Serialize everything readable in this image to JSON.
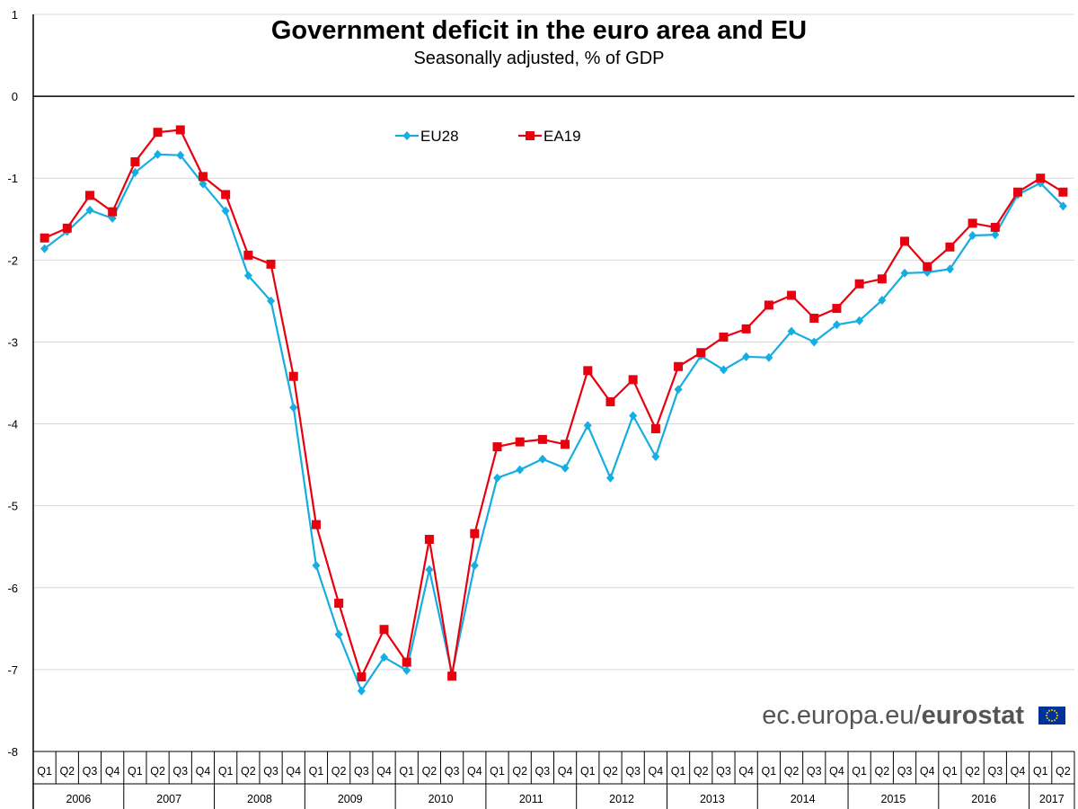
{
  "chart_data": {
    "type": "line",
    "title": "Government deficit in the euro area and EU",
    "subtitle": "Seasonally adjusted, % of GDP",
    "xlabel": "",
    "ylabel": "",
    "ylim": [
      -8,
      1
    ],
    "yticks": [
      1,
      0,
      -1,
      -2,
      -3,
      -4,
      -5,
      -6,
      -7,
      -8
    ],
    "grid": true,
    "legend_position": "top-left",
    "quarters": [
      "Q1",
      "Q2",
      "Q3",
      "Q4",
      "Q1",
      "Q2",
      "Q3",
      "Q4",
      "Q1",
      "Q2",
      "Q3",
      "Q4",
      "Q1",
      "Q2",
      "Q3",
      "Q4",
      "Q1",
      "Q2",
      "Q3",
      "Q4",
      "Q1",
      "Q2",
      "Q3",
      "Q4",
      "Q1",
      "Q2",
      "Q3",
      "Q4",
      "Q1",
      "Q2",
      "Q3",
      "Q4",
      "Q1",
      "Q2",
      "Q3",
      "Q4",
      "Q1",
      "Q2",
      "Q3",
      "Q4",
      "Q1",
      "Q2",
      "Q3",
      "Q4",
      "Q1",
      "Q2"
    ],
    "years": [
      {
        "label": "2006",
        "quarters": 4
      },
      {
        "label": "2007",
        "quarters": 4
      },
      {
        "label": "2008",
        "quarters": 4
      },
      {
        "label": "2009",
        "quarters": 4
      },
      {
        "label": "2010",
        "quarters": 4
      },
      {
        "label": "2011",
        "quarters": 4
      },
      {
        "label": "2012",
        "quarters": 4
      },
      {
        "label": "2013",
        "quarters": 4
      },
      {
        "label": "2014",
        "quarters": 4
      },
      {
        "label": "2015",
        "quarters": 4
      },
      {
        "label": "2016",
        "quarters": 4
      },
      {
        "label": "2017",
        "quarters": 2
      }
    ],
    "series": [
      {
        "name": "EU28",
        "color": "#16ade0",
        "marker": "diamond",
        "values": [
          -1.86,
          -1.65,
          -1.39,
          -1.49,
          -0.93,
          -0.71,
          -0.72,
          -1.07,
          -1.4,
          -2.19,
          -2.5,
          -3.8,
          -5.73,
          -6.57,
          -7.26,
          -6.85,
          -7.01,
          -5.78,
          -7.05,
          -5.73,
          -4.66,
          -4.56,
          -4.43,
          -4.54,
          -4.02,
          -4.66,
          -3.9,
          -4.4,
          -3.58,
          -3.17,
          -3.34,
          -3.18,
          -3.19,
          -2.87,
          -3.0,
          -2.79,
          -2.74,
          -2.49,
          -2.16,
          -2.15,
          -2.11,
          -1.7,
          -1.69,
          -1.2,
          -1.06,
          -1.34
        ]
      },
      {
        "name": "EA19",
        "color": "#e8000e",
        "marker": "square",
        "values": [
          -1.73,
          -1.61,
          -1.21,
          -1.41,
          -0.8,
          -0.44,
          -0.41,
          -0.98,
          -1.2,
          -1.94,
          -2.05,
          -3.42,
          -5.23,
          -6.19,
          -7.09,
          -6.51,
          -6.91,
          -5.41,
          -7.08,
          -5.34,
          -4.28,
          -4.22,
          -4.19,
          -4.25,
          -3.35,
          -3.73,
          -3.46,
          -4.06,
          -3.3,
          -3.13,
          -2.94,
          -2.84,
          -2.55,
          -2.43,
          -2.71,
          -2.59,
          -2.29,
          -2.23,
          -1.77,
          -2.08,
          -1.84,
          -1.55,
          -1.6,
          -1.17,
          -1.0,
          -1.17
        ]
      }
    ]
  },
  "branding": {
    "domain_text": "ec.europa.eu/",
    "brand_text": "eurostat",
    "flag_color": "#003399"
  }
}
